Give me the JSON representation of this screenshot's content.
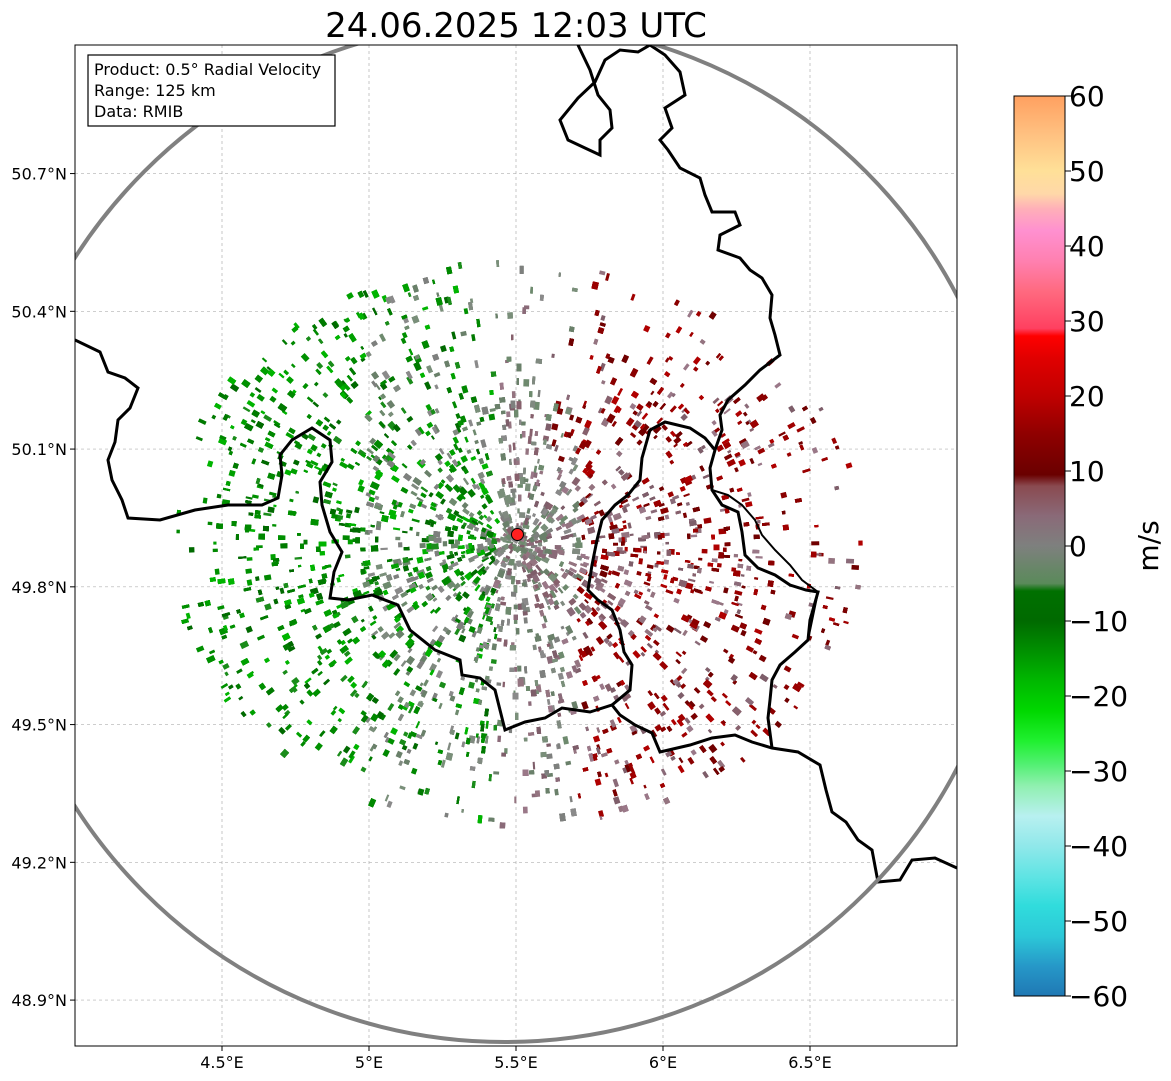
{
  "title": "24.06.2025 12:03 UTC",
  "info_box": {
    "product": "Product: 0.5° Radial Velocity",
    "range": "Range: 125 km",
    "data": "Data: RMIB"
  },
  "map": {
    "lon_range": [
      4.0,
      7.0
    ],
    "lat_range": [
      48.8,
      50.98
    ],
    "lon_ticks": [
      {
        "value": 4.5,
        "label": "4.5°E"
      },
      {
        "value": 5.0,
        "label": "5°E"
      },
      {
        "value": 5.5,
        "label": "5.5°E"
      },
      {
        "value": 6.0,
        "label": "6°E"
      },
      {
        "value": 6.5,
        "label": "6.5°E"
      }
    ],
    "lat_ticks": [
      {
        "value": 48.9,
        "label": "48.9°N"
      },
      {
        "value": 49.2,
        "label": "49.2°N"
      },
      {
        "value": 49.5,
        "label": "49.5°N"
      },
      {
        "value": 49.8,
        "label": "49.8°N"
      },
      {
        "value": 50.1,
        "label": "50.1°N"
      },
      {
        "value": 50.4,
        "label": "50.4°N"
      },
      {
        "value": 50.7,
        "label": "50.7°N"
      }
    ],
    "radar_site": {
      "lon": 5.505,
      "lat": 49.914,
      "color": "#ff2020"
    },
    "range_ring_color": "#808080",
    "border_color": "#000000"
  },
  "colorbar": {
    "label": "m/s",
    "min": -60,
    "max": 60,
    "ticks": [
      {
        "value": 60,
        "label": "60"
      },
      {
        "value": 50,
        "label": "50"
      },
      {
        "value": 40,
        "label": "40"
      },
      {
        "value": 30,
        "label": "30"
      },
      {
        "value": 20,
        "label": "20"
      },
      {
        "value": 10,
        "label": "10"
      },
      {
        "value": 0,
        "label": "0"
      },
      {
        "value": -10,
        "label": "−10"
      },
      {
        "value": -20,
        "label": "−20"
      },
      {
        "value": -30,
        "label": "−30"
      },
      {
        "value": -40,
        "label": "−40"
      },
      {
        "value": -50,
        "label": "−50"
      },
      {
        "value": -60,
        "label": "−60"
      }
    ],
    "stops": [
      {
        "v": -60,
        "c": "#1f78b4"
      },
      {
        "v": -56,
        "c": "#2698c8"
      },
      {
        "v": -52,
        "c": "#2cc8d8"
      },
      {
        "v": -48,
        "c": "#30dcdc"
      },
      {
        "v": -44,
        "c": "#60e4e4"
      },
      {
        "v": -40,
        "c": "#90e8ea"
      },
      {
        "v": -36,
        "c": "#b8f0f0"
      },
      {
        "v": -32,
        "c": "#90f0b0"
      },
      {
        "v": -29,
        "c": "#50f070"
      },
      {
        "v": -26,
        "c": "#20f030"
      },
      {
        "v": -22,
        "c": "#00d800"
      },
      {
        "v": -18,
        "c": "#00b800"
      },
      {
        "v": -14,
        "c": "#009000"
      },
      {
        "v": -10,
        "c": "#006a00"
      },
      {
        "v": -6,
        "c": "#007000"
      },
      {
        "v": -5,
        "c": "#5a8a5a"
      },
      {
        "v": 0,
        "c": "#7e807e"
      },
      {
        "v": 4,
        "c": "#8a6a78"
      },
      {
        "v": 8,
        "c": "#8a4a50"
      },
      {
        "v": 9.5,
        "c": "#6a0000"
      },
      {
        "v": 15,
        "c": "#900000"
      },
      {
        "v": 20,
        "c": "#c00000"
      },
      {
        "v": 25,
        "c": "#e00000"
      },
      {
        "v": 28,
        "c": "#ff0000"
      },
      {
        "v": 29,
        "c": "#ff4060"
      },
      {
        "v": 34,
        "c": "#ff6a80"
      },
      {
        "v": 38,
        "c": "#ff80b0"
      },
      {
        "v": 42,
        "c": "#ff90d0"
      },
      {
        "v": 45,
        "c": "#ffb0b8"
      },
      {
        "v": 47,
        "c": "#ffd8a8"
      },
      {
        "v": 50,
        "c": "#ffe098"
      },
      {
        "v": 55,
        "c": "#ffc080"
      },
      {
        "v": 60,
        "c": "#ffa060"
      }
    ]
  }
}
